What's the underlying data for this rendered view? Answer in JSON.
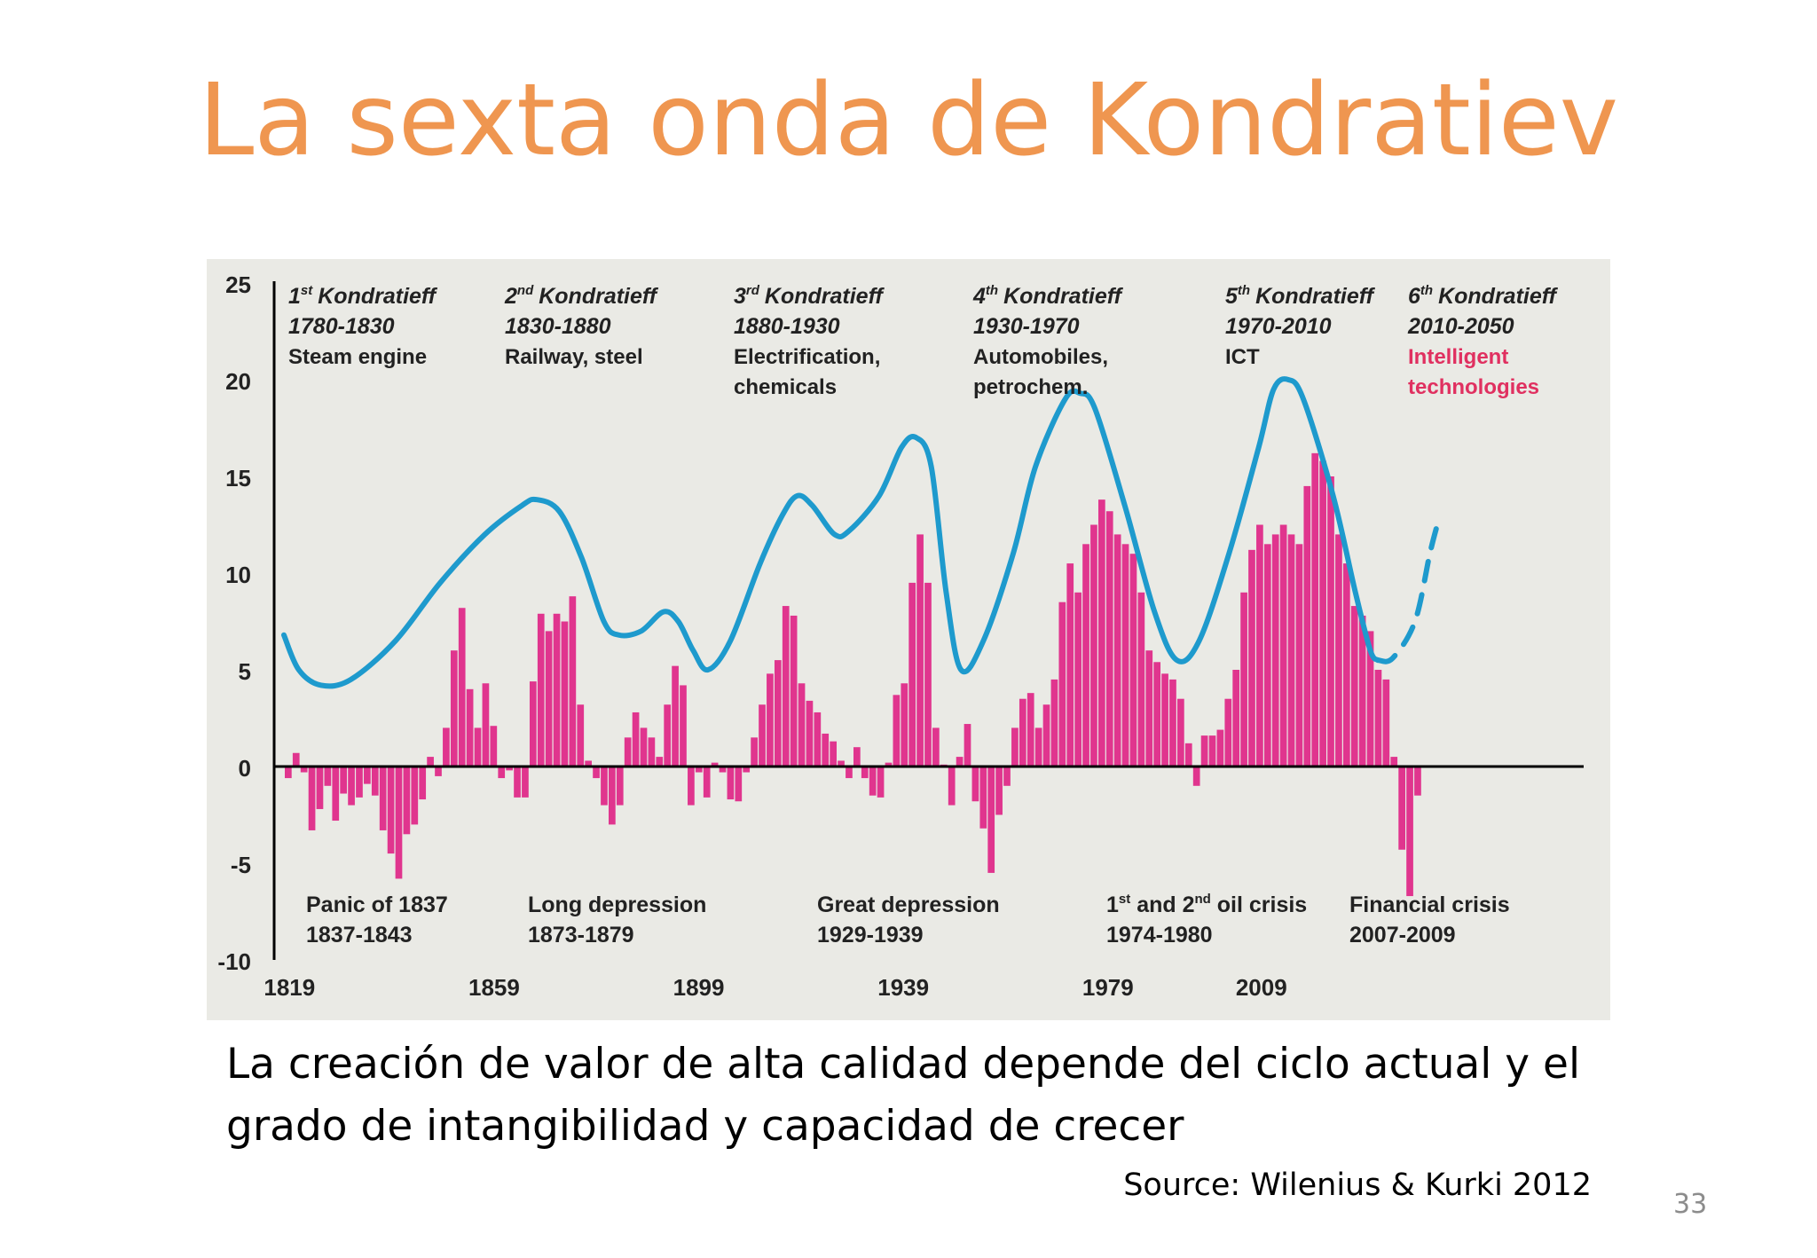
{
  "slide": {
    "title": "La sexta onda de Kondratiev",
    "caption": "La creación de valor de alta calidad depende del ciclo actual y el grado de intangibilidad y capacidad de crecer",
    "source": "Source: Wilenius & Kurki 2012",
    "page_number": "33"
  },
  "colors": {
    "title": "#EF9650",
    "wave_line": "#1E9ACD",
    "bars": "#E0358E",
    "highlight_text": "#E03060",
    "panel_background": "#EAEAE5"
  },
  "chart_data": {
    "type": "bar+line",
    "title": "",
    "xlabel": "",
    "ylabel": "",
    "ylim": [
      -10,
      25
    ],
    "yticks": [
      "25",
      "20",
      "15",
      "10",
      "5",
      "0",
      "-5",
      "-10"
    ],
    "ytick_values": [
      25,
      20,
      15,
      10,
      5,
      0,
      -5,
      -10
    ],
    "xlim": [
      1816,
      2072
    ],
    "xticks": [
      "1819",
      "1859",
      "1899",
      "1939",
      "1979",
      "2009"
    ],
    "xtick_values": [
      1819,
      1859,
      1899,
      1939,
      1979,
      2009
    ],
    "grid": false,
    "waves": [
      {
        "ordinal": "1",
        "sup": "st",
        "label": "Kondratieff",
        "period": "1780-1830",
        "theme": "Steam engine",
        "highlight": false
      },
      {
        "ordinal": "2",
        "sup": "nd",
        "label": "Kondratieff",
        "period": "1830-1880",
        "theme": "Railway, steel",
        "highlight": false
      },
      {
        "ordinal": "3",
        "sup": "rd",
        "label": "Kondratieff",
        "period": "1880-1930",
        "theme": "Electrification,",
        "theme2": "chemicals",
        "highlight": false
      },
      {
        "ordinal": "4",
        "sup": "th",
        "label": "Kondratieff",
        "period": "1930-1970",
        "theme": "Automobiles,",
        "theme2": "petrochem.",
        "highlight": false
      },
      {
        "ordinal": "5",
        "sup": "th",
        "label": "Kondratieff",
        "period": "1970-2010",
        "theme": "ICT",
        "highlight": false
      },
      {
        "ordinal": "6",
        "sup": "th",
        "label": "Kondratieff",
        "period": "2010-2050",
        "theme": "Intelligent",
        "theme2": "technologies",
        "highlight": true
      }
    ],
    "crises": [
      {
        "name": "Panic of 1837",
        "period": "1837-1843"
      },
      {
        "name": "Long depression",
        "period": "1873-1879"
      },
      {
        "name": "Great depression",
        "period": "1929-1939"
      },
      {
        "prefix": "1",
        "sup1": "st",
        "mid": " and 2",
        "sup2": "nd",
        "name": " oil crisis",
        "period": "1974-1980"
      },
      {
        "name": "Financial crisis",
        "period": "2007-2009"
      }
    ],
    "bar_start_year": 1819,
    "bar_end_year": 2014,
    "bar_anchors": [
      [
        1819,
        -0.6
      ],
      [
        1820,
        0.7
      ],
      [
        1821,
        -0.3
      ],
      [
        1822,
        -3.3
      ],
      [
        1823,
        -2.2
      ],
      [
        1824,
        -1.0
      ],
      [
        1825,
        -2.8
      ],
      [
        1826,
        -1.4
      ],
      [
        1827,
        -2.0
      ],
      [
        1828,
        -1.6
      ],
      [
        1829,
        -0.9
      ],
      [
        1830,
        -1.5
      ],
      [
        1831,
        -3.3
      ],
      [
        1832,
        -4.5
      ],
      [
        1833,
        -5.8
      ],
      [
        1834,
        -3.5
      ],
      [
        1835,
        -3.0
      ],
      [
        1836,
        -1.7
      ],
      [
        1837,
        0.5
      ],
      [
        1838,
        -0.5
      ],
      [
        1839,
        2.0
      ],
      [
        1840,
        6.0
      ],
      [
        1841,
        8.2
      ],
      [
        1842,
        4.0
      ],
      [
        1843,
        2.0
      ],
      [
        1844,
        4.3
      ],
      [
        1845,
        2.1
      ],
      [
        1846,
        -0.6
      ],
      [
        1847,
        -0.2
      ],
      [
        1848,
        -1.6
      ],
      [
        1849,
        -1.6
      ],
      [
        1850,
        4.4
      ],
      [
        1851,
        7.9
      ],
      [
        1852,
        7.0
      ],
      [
        1853,
        7.9
      ],
      [
        1854,
        7.5
      ],
      [
        1855,
        8.8
      ],
      [
        1856,
        3.2
      ],
      [
        1857,
        0.3
      ],
      [
        1858,
        -0.6
      ],
      [
        1859,
        -2.0
      ],
      [
        1860,
        -3.0
      ],
      [
        1861,
        -2.0
      ],
      [
        1862,
        1.5
      ],
      [
        1863,
        2.8
      ],
      [
        1864,
        2.0
      ],
      [
        1865,
        1.5
      ],
      [
        1866,
        0.5
      ],
      [
        1867,
        3.2
      ],
      [
        1868,
        5.2
      ],
      [
        1869,
        4.2
      ],
      [
        1870,
        -2.0
      ],
      [
        1871,
        -0.3
      ],
      [
        1872,
        -1.6
      ],
      [
        1873,
        0.2
      ],
      [
        1874,
        -0.3
      ],
      [
        1875,
        -1.7
      ],
      [
        1876,
        -1.8
      ],
      [
        1877,
        -0.3
      ],
      [
        1878,
        1.5
      ],
      [
        1879,
        3.2
      ],
      [
        1880,
        4.8
      ],
      [
        1881,
        5.5
      ],
      [
        1882,
        8.3
      ],
      [
        1883,
        7.8
      ],
      [
        1884,
        4.3
      ],
      [
        1885,
        3.4
      ],
      [
        1886,
        2.8
      ],
      [
        1887,
        1.7
      ],
      [
        1888,
        1.3
      ],
      [
        1889,
        0.3
      ],
      [
        1890,
        -0.6
      ],
      [
        1891,
        1.0
      ],
      [
        1892,
        -0.6
      ],
      [
        1893,
        -1.5
      ],
      [
        1894,
        -1.6
      ],
      [
        1895,
        0.2
      ],
      [
        1896,
        3.7
      ],
      [
        1897,
        4.3
      ],
      [
        1898,
        9.5
      ],
      [
        1899,
        12.0
      ],
      [
        1900,
        9.5
      ],
      [
        1901,
        2.0
      ],
      [
        1902,
        0.1
      ],
      [
        1903,
        -2.0
      ],
      [
        1904,
        0.5
      ],
      [
        1905,
        2.2
      ],
      [
        1906,
        -1.8
      ],
      [
        1907,
        -3.2
      ],
      [
        1908,
        -5.5
      ],
      [
        1909,
        -2.5
      ],
      [
        1910,
        -1.0
      ],
      [
        1911,
        2.0
      ],
      [
        1912,
        3.5
      ],
      [
        1913,
        3.8
      ],
      [
        1914,
        2.0
      ],
      [
        1915,
        3.2
      ],
      [
        1916,
        4.5
      ],
      [
        1917,
        8.5
      ],
      [
        1918,
        10.5
      ],
      [
        1919,
        9.0
      ],
      [
        1920,
        11.5
      ],
      [
        1921,
        12.5
      ],
      [
        1922,
        13.8
      ],
      [
        1923,
        13.2
      ],
      [
        1924,
        12.0
      ],
      [
        1925,
        11.5
      ],
      [
        1926,
        11.0
      ],
      [
        1927,
        9.0
      ],
      [
        1928,
        6.0
      ],
      [
        1929,
        5.4
      ],
      [
        1930,
        4.8
      ],
      [
        1931,
        4.5
      ],
      [
        1932,
        3.5
      ],
      [
        1933,
        1.2
      ],
      [
        1934,
        -1.0
      ],
      [
        1935,
        1.6
      ],
      [
        1936,
        1.6
      ],
      [
        1937,
        1.9
      ],
      [
        1938,
        3.5
      ],
      [
        1939,
        5.0
      ],
      [
        1940,
        9.0
      ],
      [
        1941,
        11.2
      ],
      [
        1942,
        12.5
      ],
      [
        1943,
        11.5
      ],
      [
        1944,
        12.0
      ],
      [
        1945,
        12.5
      ],
      [
        1946,
        12.0
      ],
      [
        1947,
        11.5
      ],
      [
        1948,
        14.5
      ],
      [
        1949,
        16.2
      ],
      [
        1950,
        15.8
      ],
      [
        1951,
        15.0
      ],
      [
        1952,
        12.0
      ],
      [
        1953,
        10.5
      ],
      [
        1954,
        8.3
      ],
      [
        1955,
        7.8
      ],
      [
        1956,
        7.0
      ],
      [
        1957,
        5.0
      ],
      [
        1958,
        4.5
      ],
      [
        1959,
        0.5
      ],
      [
        1960,
        -4.3
      ],
      [
        1961,
        -6.7
      ],
      [
        1962,
        -1.5
      ]
    ],
    "line_anchors": [
      [
        1819,
        6.8
      ],
      [
        1821,
        5.0
      ],
      [
        1824,
        4.2
      ],
      [
        1828,
        4.5
      ],
      [
        1834,
        6.5
      ],
      [
        1840,
        9.5
      ],
      [
        1846,
        12.0
      ],
      [
        1851,
        13.5
      ],
      [
        1853,
        13.8
      ],
      [
        1856,
        13.2
      ],
      [
        1859,
        10.8
      ],
      [
        1862,
        7.5
      ],
      [
        1864,
        6.8
      ],
      [
        1867,
        7.0
      ],
      [
        1870,
        8.0
      ],
      [
        1872,
        7.5
      ],
      [
        1874,
        6.0
      ],
      [
        1876,
        5.0
      ],
      [
        1879,
        6.5
      ],
      [
        1883,
        10.5
      ],
      [
        1886,
        13.0
      ],
      [
        1888,
        14.0
      ],
      [
        1890,
        13.5
      ],
      [
        1893,
        12.0
      ],
      [
        1895,
        12.2
      ],
      [
        1899,
        14.0
      ],
      [
        1902,
        16.5
      ],
      [
        1904,
        17.0
      ],
      [
        1906,
        15.5
      ],
      [
        1908,
        9.0
      ],
      [
        1910,
        5.0
      ],
      [
        1913,
        6.5
      ],
      [
        1917,
        11.0
      ],
      [
        1920,
        15.5
      ],
      [
        1924,
        19.0
      ],
      [
        1926,
        19.3
      ],
      [
        1928,
        18.5
      ],
      [
        1932,
        13.5
      ],
      [
        1936,
        8.0
      ],
      [
        1939,
        5.5
      ],
      [
        1942,
        6.5
      ],
      [
        1946,
        11.0
      ],
      [
        1950,
        16.5
      ],
      [
        1952,
        19.5
      ],
      [
        1954,
        20.0
      ],
      [
        1956,
        19.0
      ],
      [
        1960,
        14.0
      ],
      [
        1963,
        9.0
      ],
      [
        1965,
        6.0
      ],
      [
        1966,
        5.5
      ]
    ],
    "forecast_anchors": [
      [
        1966,
        5.5
      ],
      [
        1968,
        5.6
      ],
      [
        1971,
        7.5
      ],
      [
        1973,
        11.0
      ],
      [
        1974,
        12.5
      ]
    ]
  }
}
